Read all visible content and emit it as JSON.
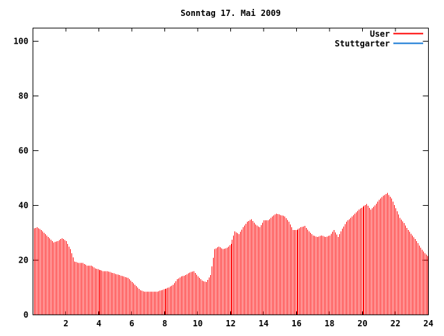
{
  "title": "Sonntag 17. Mai 2009",
  "legend": {
    "position": "top-right-inside",
    "items": [
      {
        "label": "User",
        "color": "#ff0000"
      },
      {
        "label": "Stuttgarter",
        "color": "#1277d4"
      }
    ]
  },
  "axes": {
    "x_tick_labels": [
      "2",
      "4",
      "6",
      "8",
      "10",
      "12",
      "14",
      "16",
      "18",
      "20",
      "22",
      "24"
    ],
    "y_tick_labels": [
      "0",
      "20",
      "40",
      "60",
      "80",
      "100"
    ]
  },
  "colors": {
    "background": "#ffffff",
    "border": "#000000",
    "user_series": "#ff0000",
    "stuttgarter_series": "#1277d4"
  },
  "chart_data": {
    "type": "bar",
    "style": "impulses",
    "title": "Sonntag 17. Mai 2009",
    "xlabel": "",
    "ylabel": "",
    "xlim": [
      0,
      24
    ],
    "ylim": [
      0,
      105
    ],
    "x_ticks": [
      2,
      4,
      6,
      8,
      10,
      12,
      14,
      16,
      18,
      20,
      22,
      24
    ],
    "y_ticks": [
      0,
      20,
      40,
      60,
      80,
      100
    ],
    "grid": false,
    "legend_position": "top-right-inside",
    "series": [
      {
        "name": "User",
        "color": "#ff0000",
        "style": "impulses",
        "x_unit": "hour",
        "x_start": 0,
        "x_step_hours": 0.25,
        "render_step_hours": 0.0833,
        "values": [
          31.5,
          32,
          31,
          29.5,
          28,
          26.5,
          27,
          28,
          27,
          24,
          19.5,
          19,
          19,
          18,
          18,
          17,
          16.5,
          16,
          16,
          15.5,
          15,
          14.5,
          14,
          13.5,
          12,
          10.5,
          9,
          8.5,
          8.5,
          8.5,
          8.5,
          9,
          9.5,
          10,
          11,
          13,
          14,
          14.5,
          15.5,
          16,
          14,
          12.5,
          12,
          14.5,
          24,
          25,
          24,
          24.5,
          26,
          30.5,
          29.5,
          32,
          34,
          35,
          33,
          32,
          34.5,
          34.5,
          36,
          37,
          36.5,
          36,
          34,
          31,
          31,
          32,
          32.5,
          30.5,
          29,
          28.5,
          29,
          28.5,
          29,
          31,
          28.5,
          31.5,
          34,
          35.5,
          37,
          38.5,
          39.5,
          40.5,
          38.5,
          40,
          42,
          43.5,
          44.5,
          42.5,
          39,
          35.5,
          33.5,
          31,
          29,
          27,
          24.5,
          22.5,
          21
        ]
      },
      {
        "name": "Stuttgarter",
        "color": "#1277d4",
        "style": "line",
        "values": [],
        "visible_in_plot": false
      }
    ]
  }
}
